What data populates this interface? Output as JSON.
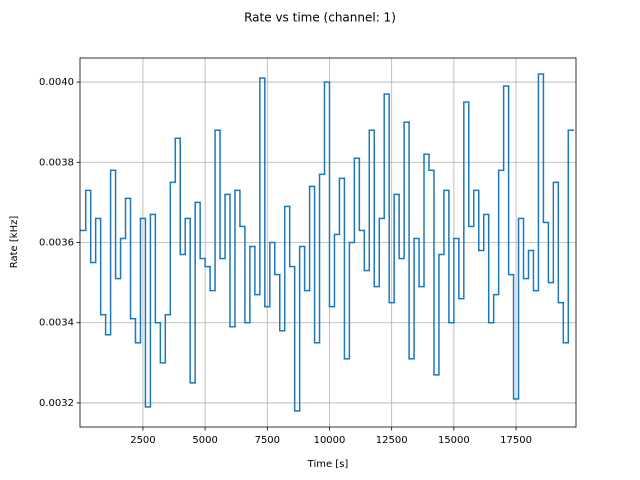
{
  "chart_data": {
    "type": "step",
    "title": "Rate vs time (channel: 1)",
    "x_label": "Time [s]",
    "y_label": "Rate [kHz]",
    "x": [
      0,
      200,
      400,
      600,
      800,
      1000,
      1200,
      1400,
      1600,
      1800,
      2000,
      2200,
      2400,
      2600,
      2800,
      3000,
      3200,
      3400,
      3600,
      3800,
      4000,
      4200,
      4400,
      4600,
      4800,
      5000,
      5200,
      5400,
      5600,
      5800,
      6000,
      6200,
      6400,
      6600,
      6800,
      7000,
      7200,
      7400,
      7600,
      7800,
      8000,
      8200,
      8400,
      8600,
      8800,
      9000,
      9200,
      9400,
      9600,
      9800,
      10000,
      10200,
      10400,
      10600,
      10800,
      11000,
      11200,
      11400,
      11600,
      11800,
      12000,
      12200,
      12400,
      12600,
      12800,
      13000,
      13200,
      13400,
      13600,
      13800,
      14000,
      14200,
      14400,
      14600,
      14800,
      15000,
      15200,
      15400,
      15600,
      15800,
      16000,
      16200,
      16400,
      16600,
      16800,
      17000,
      17200,
      17400,
      17600,
      17800,
      18000,
      18200,
      18400,
      18600,
      18800,
      19000,
      19200,
      19400,
      19600
    ],
    "series": [
      {
        "name": "Rate",
        "color": "#1f77b4",
        "values": [
          0.00363,
          0.00373,
          0.00355,
          0.00366,
          0.00342,
          0.00337,
          0.00378,
          0.00351,
          0.00361,
          0.00371,
          0.00341,
          0.00335,
          0.00366,
          0.00319,
          0.00367,
          0.0034,
          0.0033,
          0.00342,
          0.00375,
          0.00386,
          0.00357,
          0.00366,
          0.00325,
          0.0037,
          0.00356,
          0.00354,
          0.00348,
          0.00388,
          0.00356,
          0.00372,
          0.00339,
          0.00373,
          0.00364,
          0.0034,
          0.00359,
          0.00347,
          0.00401,
          0.00344,
          0.0036,
          0.00352,
          0.00338,
          0.00369,
          0.00354,
          0.00318,
          0.00359,
          0.00348,
          0.00374,
          0.00335,
          0.00377,
          0.004,
          0.00344,
          0.00362,
          0.00376,
          0.00331,
          0.0036,
          0.00381,
          0.00363,
          0.00353,
          0.00388,
          0.00349,
          0.00366,
          0.00397,
          0.00345,
          0.00372,
          0.00356,
          0.0039,
          0.00331,
          0.00361,
          0.00349,
          0.00382,
          0.00378,
          0.00327,
          0.00357,
          0.00373,
          0.0034,
          0.00361,
          0.00346,
          0.00395,
          0.00364,
          0.00373,
          0.00358,
          0.00367,
          0.0034,
          0.00347,
          0.00378,
          0.00399,
          0.00352,
          0.00321,
          0.00366,
          0.00351,
          0.00358,
          0.00348,
          0.00402,
          0.00365,
          0.0035,
          0.00375,
          0.00345,
          0.00335,
          0.00388
        ]
      }
    ],
    "xlim": [
      -30,
      19910
    ],
    "ylim": [
      0.00314,
      0.00406
    ],
    "xticks": [
      2500,
      5000,
      7500,
      10000,
      12500,
      15000,
      17500
    ],
    "yticks": [
      0.0032,
      0.0034,
      0.0036,
      0.0038,
      {
        "value": 0.004,
        "label": "0.0040"
      }
    ],
    "grid": true
  }
}
